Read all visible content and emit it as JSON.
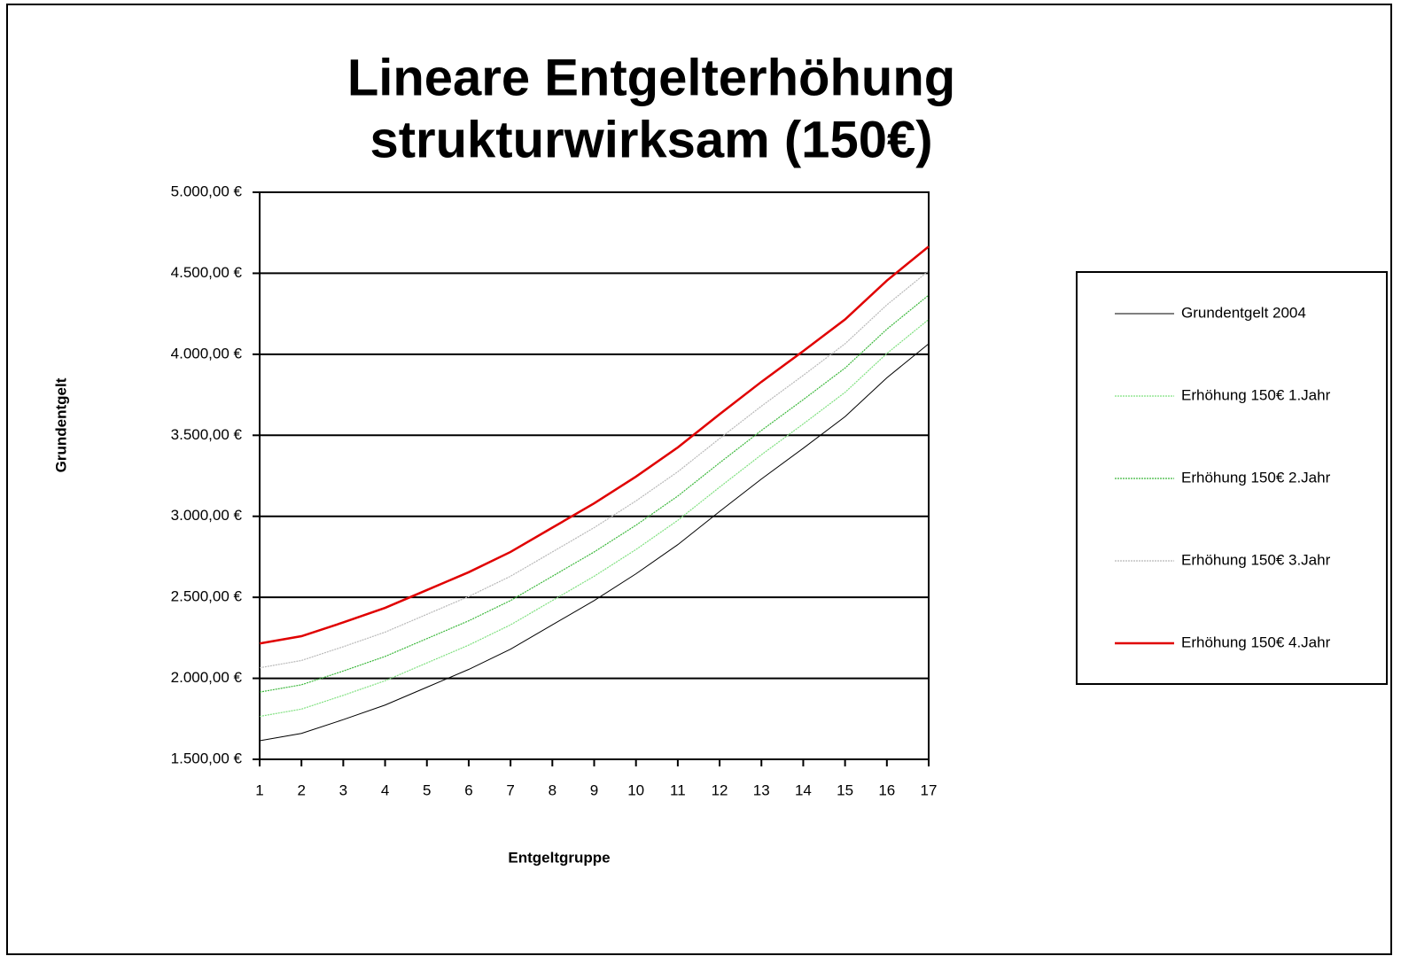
{
  "chart_data": {
    "type": "line",
    "title": [
      "Lineare Entgelterhöhung",
      "strukturwirksam (150€)"
    ],
    "x_label": "Entgeltgruppe",
    "y_label": "Grundentgelt",
    "categories": [
      "1",
      "2",
      "3",
      "4",
      "5",
      "6",
      "7",
      "8",
      "9",
      "10",
      "11",
      "12",
      "13",
      "14",
      "15",
      "16",
      "17"
    ],
    "series": [
      {
        "name": "Grundentgelt 2004",
        "color": "#000000",
        "values": [
          1615,
          1660,
          1745,
          1835,
          1945,
          2055,
          2180,
          2330,
          2480,
          2645,
          2825,
          3030,
          3230,
          3420,
          3615,
          3855,
          4065
        ]
      },
      {
        "name": "Erhöhung 150€ 1.Jahr",
        "color": "#7fe07f",
        "values": [
          1765,
          1810,
          1895,
          1985,
          2095,
          2205,
          2330,
          2480,
          2630,
          2795,
          2975,
          3180,
          3380,
          3570,
          3765,
          4005,
          4215
        ]
      },
      {
        "name": "Erhöhung 150€ 2.Jahr",
        "color": "#3cb83c",
        "values": [
          1915,
          1960,
          2045,
          2135,
          2245,
          2355,
          2480,
          2630,
          2780,
          2945,
          3125,
          3330,
          3530,
          3720,
          3915,
          4155,
          4365
        ]
      },
      {
        "name": "Erhöhung 150€ 3.Jahr",
        "color": "#b8b8b8",
        "values": [
          2065,
          2110,
          2195,
          2285,
          2395,
          2505,
          2630,
          2780,
          2930,
          3095,
          3275,
          3480,
          3680,
          3870,
          4065,
          4305,
          4515
        ]
      },
      {
        "name": "Erhöhung 150€ 4.Jahr",
        "color": "#e00000",
        "values": [
          2215,
          2260,
          2345,
          2435,
          2545,
          2655,
          2780,
          2930,
          3080,
          3245,
          3425,
          3630,
          3830,
          4020,
          4215,
          4455,
          4665
        ]
      }
    ],
    "ylim": [
      1500,
      5000
    ],
    "yticks": [
      {
        "value": 1500,
        "label": "1.500,00 €"
      },
      {
        "value": 2000,
        "label": "2.000,00 €"
      },
      {
        "value": 2500,
        "label": "2.500,00 €"
      },
      {
        "value": 3000,
        "label": "3.000,00 €"
      },
      {
        "value": 3500,
        "label": "3.500,00 €"
      },
      {
        "value": 4000,
        "label": "4.000,00 €"
      },
      {
        "value": 4500,
        "label": "4.500,00 €"
      },
      {
        "value": 5000,
        "label": "5.000,00 €"
      }
    ],
    "grid": true,
    "legend": "right"
  }
}
